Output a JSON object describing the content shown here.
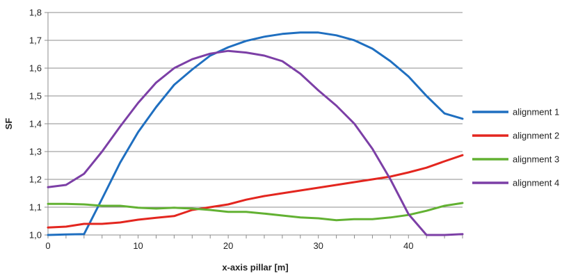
{
  "chart_data": {
    "type": "line",
    "xlabel": "x-axis pillar [m]",
    "ylabel": "SF",
    "xlim": [
      0,
      46
    ],
    "ylim": [
      1.0,
      1.8
    ],
    "x_ticks": [
      0,
      10,
      20,
      30,
      40
    ],
    "x_tick_labels": [
      "0",
      "10",
      "20",
      "30",
      "40"
    ],
    "y_ticks": [
      1.0,
      1.1,
      1.2,
      1.3,
      1.4,
      1.5,
      1.6,
      1.7,
      1.8
    ],
    "y_tick_labels": [
      "1,0",
      "1,1",
      "1,2",
      "1,3",
      "1,4",
      "1,5",
      "1,6",
      "1,7",
      "1,8"
    ],
    "grid": "horizontal",
    "legend_position": "right",
    "x": [
      0,
      2,
      4,
      6,
      8,
      10,
      12,
      14,
      16,
      18,
      20,
      22,
      24,
      26,
      28,
      30,
      32,
      34,
      36,
      38,
      40,
      42,
      44,
      46
    ],
    "series": [
      {
        "name": "alignment 1",
        "color": "#1f6fc0",
        "values": [
          1.0,
          1.002,
          1.003,
          1.13,
          1.26,
          1.37,
          1.46,
          1.54,
          1.595,
          1.645,
          1.675,
          1.698,
          1.713,
          1.723,
          1.728,
          1.728,
          1.718,
          1.7,
          1.67,
          1.625,
          1.57,
          1.5,
          1.437,
          1.418
        ]
      },
      {
        "name": "alignment 2",
        "color": "#e3261f",
        "values": [
          1.027,
          1.03,
          1.04,
          1.04,
          1.045,
          1.055,
          1.062,
          1.068,
          1.09,
          1.1,
          1.11,
          1.127,
          1.14,
          1.15,
          1.16,
          1.17,
          1.18,
          1.19,
          1.2,
          1.21,
          1.225,
          1.242,
          1.265,
          1.287
        ]
      },
      {
        "name": "alignment 3",
        "color": "#62b132",
        "values": [
          1.112,
          1.112,
          1.11,
          1.105,
          1.105,
          1.098,
          1.095,
          1.098,
          1.095,
          1.09,
          1.083,
          1.083,
          1.077,
          1.07,
          1.063,
          1.06,
          1.053,
          1.057,
          1.057,
          1.063,
          1.072,
          1.087,
          1.105,
          1.115
        ]
      },
      {
        "name": "alignment 4",
        "color": "#7c3fa6",
        "values": [
          1.172,
          1.18,
          1.22,
          1.3,
          1.39,
          1.475,
          1.548,
          1.6,
          1.632,
          1.652,
          1.662,
          1.656,
          1.645,
          1.625,
          1.58,
          1.52,
          1.465,
          1.4,
          1.31,
          1.2,
          1.075,
          1.0,
          1.0,
          1.003
        ]
      }
    ]
  }
}
